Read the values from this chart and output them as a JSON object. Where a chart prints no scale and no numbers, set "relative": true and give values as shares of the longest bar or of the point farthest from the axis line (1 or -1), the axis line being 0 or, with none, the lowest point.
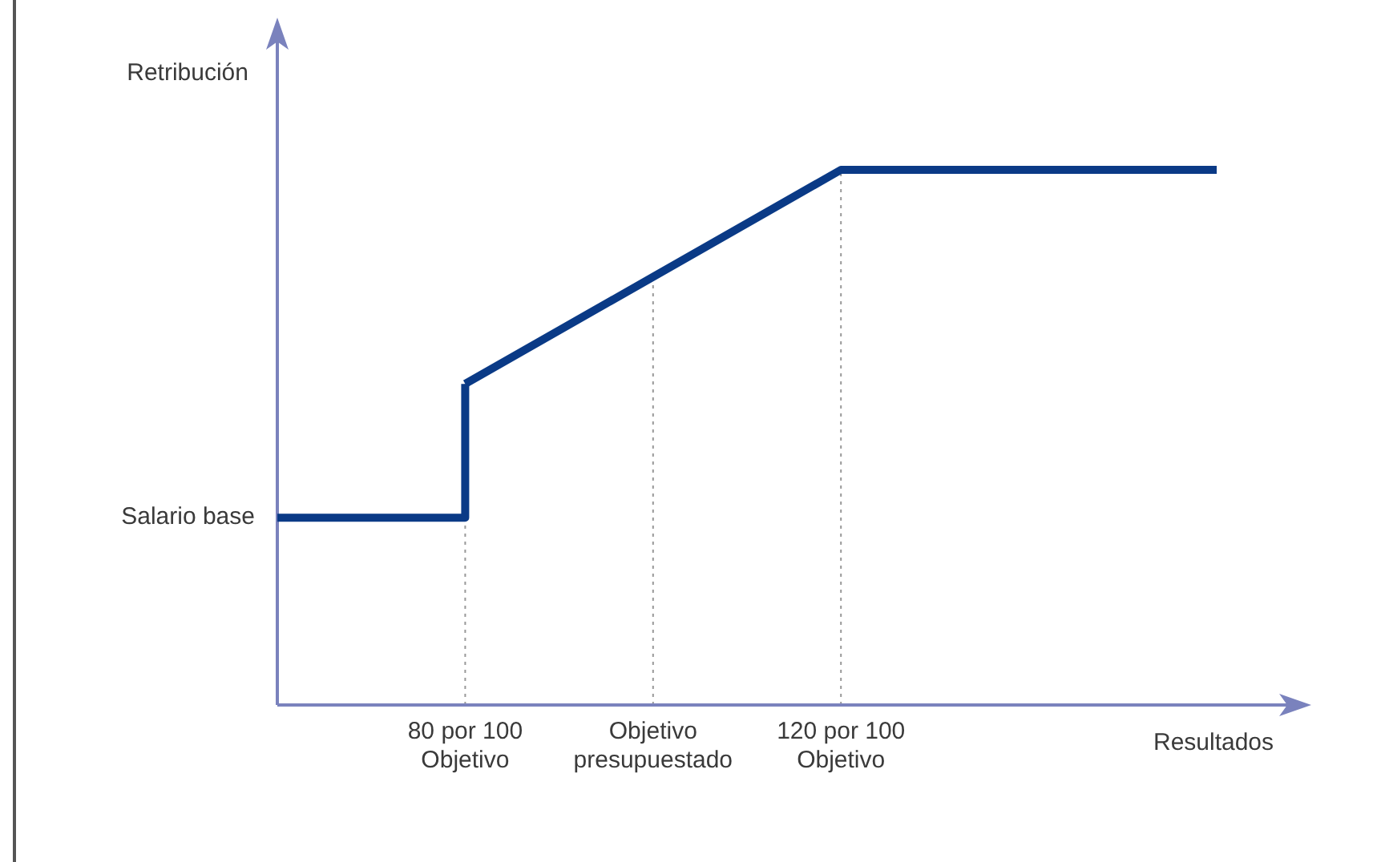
{
  "chart_data": {
    "type": "line",
    "relative": true,
    "ylabel": "Retribución",
    "xlabel": "Resultados",
    "categories": [
      null,
      "80 por 100\nObjetivo",
      "Objetivo\npresupuestado",
      "120 por 100\nObjetivo",
      null,
      null
    ],
    "series": [
      {
        "type": "step",
        "color": "#0a3a86",
        "values": [
          0.35,
          0.6,
          null,
          null,
          null,
          null
        ]
      },
      {
        "type": "line",
        "color": "#0a3a86",
        "values": [
          null,
          0.6,
          0.8,
          1,
          1,
          1
        ]
      }
    ],
    "ref_lines": [
      {
        "axis": "x",
        "value": "80 por 100\nObjetivo",
        "color": "#999999",
        "line_style": "dotted"
      },
      {
        "axis": "x",
        "value": "Objetivo\npresupuestado",
        "color": "#999999",
        "line_style": "dotted"
      },
      {
        "axis": "x",
        "value": "120 por 100\nObjetivo",
        "color": "#999999",
        "line_style": "dotted"
      }
    ],
    "annotations": [
      "Salario base"
    ],
    "marker": "none",
    "line_style": "solid",
    "legend": false,
    "grid": false
  }
}
